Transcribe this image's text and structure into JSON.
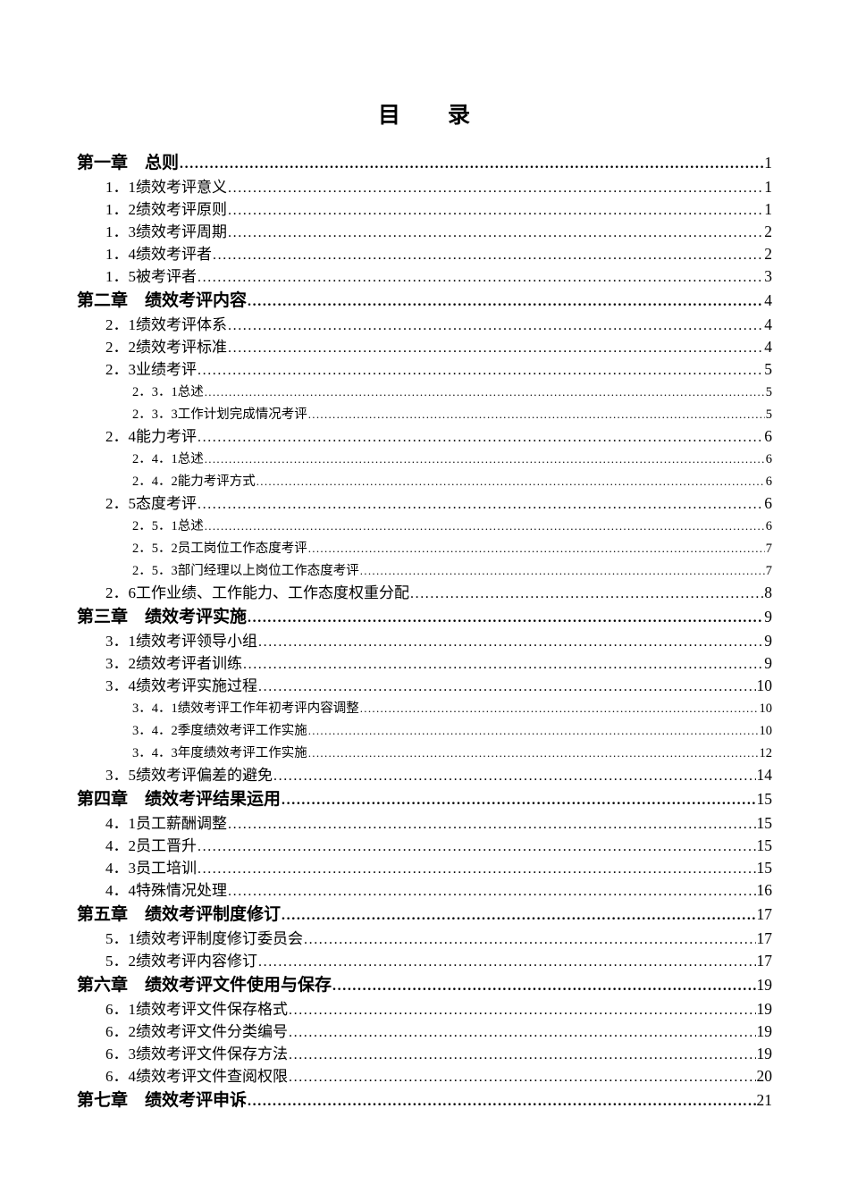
{
  "document": {
    "title": "目　　录",
    "toc": {
      "entries": [
        {
          "level": 1,
          "num": "第一章",
          "title": "总则",
          "page": "1"
        },
        {
          "level": 2,
          "num": "1．1",
          "title": "绩效考评意义",
          "page": "1"
        },
        {
          "level": 2,
          "num": "1．2",
          "title": "绩效考评原则",
          "page": "1"
        },
        {
          "level": 2,
          "num": "1．3",
          "title": "绩效考评周期",
          "page": "2"
        },
        {
          "level": 2,
          "num": "1．4",
          "title": "绩效考评者",
          "page": "2"
        },
        {
          "level": 2,
          "num": "1．5",
          "title": "被考评者",
          "page": "3"
        },
        {
          "level": 1,
          "num": "第二章",
          "title": "绩效考评内容",
          "page": "4"
        },
        {
          "level": 2,
          "num": "2．1",
          "title": "绩效考评体系",
          "page": "4"
        },
        {
          "level": 2,
          "num": "2．2",
          "title": "绩效考评标准",
          "page": "4"
        },
        {
          "level": 2,
          "num": "2．3",
          "title": "业绩考评",
          "page": "5"
        },
        {
          "level": 3,
          "num": "2．3．1",
          "title": "总述",
          "page": "5"
        },
        {
          "level": 3,
          "num": "2．3．3",
          "title": "工作计划完成情况考评",
          "page": "5"
        },
        {
          "level": 2,
          "num": "2．4",
          "title": "能力考评",
          "page": "6"
        },
        {
          "level": 3,
          "num": "2．4．1",
          "title": "总述",
          "page": "6"
        },
        {
          "level": 3,
          "num": "2．4．2",
          "title": "能力考评方式",
          "page": "6"
        },
        {
          "level": 2,
          "num": "2．5",
          "title": "态度考评",
          "page": "6"
        },
        {
          "level": 3,
          "num": "2．5．1",
          "title": "总述",
          "page": "6"
        },
        {
          "level": 3,
          "num": "2．5．2",
          "title": "员工岗位工作态度考评",
          "page": "7"
        },
        {
          "level": 3,
          "num": "2．5．3",
          "title": "部门经理以上岗位工作态度考评",
          "page": "7"
        },
        {
          "level": 2,
          "num": "2．6",
          "title": "工作业绩、工作能力、工作态度权重分配",
          "page": "8"
        },
        {
          "level": 1,
          "num": "第三章",
          "title": "绩效考评实施",
          "page": "9"
        },
        {
          "level": 2,
          "num": "3．1",
          "title": "绩效考评领导小组",
          "page": "9"
        },
        {
          "level": 2,
          "num": "3．2",
          "title": "绩效考评者训练",
          "page": "9"
        },
        {
          "level": 2,
          "num": "3．4",
          "title": "绩效考评实施过程",
          "page": "10"
        },
        {
          "level": 3,
          "num": "3．4．1",
          "title": "绩效考评工作年初考评内容调整",
          "page": "10"
        },
        {
          "level": 3,
          "num": "3．4．2",
          "title": "季度绩效考评工作实施",
          "page": "10"
        },
        {
          "level": 3,
          "num": "3．4．3",
          "title": "年度绩效考评工作实施",
          "page": "12"
        },
        {
          "level": 2,
          "num": "3．5",
          "title": "绩效考评偏差的避免",
          "page": "14"
        },
        {
          "level": 1,
          "num": "第四章",
          "title": "绩效考评结果运用",
          "page": "15"
        },
        {
          "level": 2,
          "num": "4．1",
          "title": "员工薪酬调整",
          "page": "15"
        },
        {
          "level": 2,
          "num": "4．2",
          "title": "员工晋升",
          "page": "15"
        },
        {
          "level": 2,
          "num": "4．3",
          "title": "员工培训",
          "page": "15"
        },
        {
          "level": 2,
          "num": "4．4",
          "title": "特殊情况处理",
          "page": "16"
        },
        {
          "level": 1,
          "num": "第五章",
          "title": "绩效考评制度修订",
          "page": "17"
        },
        {
          "level": 2,
          "num": "5．1",
          "title": "绩效考评制度修订委员会",
          "page": "17"
        },
        {
          "level": 2,
          "num": "5．2",
          "title": "绩效考评内容修订",
          "page": "17"
        },
        {
          "level": 1,
          "num": "第六章",
          "title": "绩效考评文件使用与保存",
          "page": "19"
        },
        {
          "level": 2,
          "num": "6．1",
          "title": "绩效考评文件保存格式",
          "page": "19"
        },
        {
          "level": 2,
          "num": "6．2",
          "title": "绩效考评文件分类编号",
          "page": "19"
        },
        {
          "level": 2,
          "num": "6．3",
          "title": "绩效考评文件保存方法",
          "page": "19"
        },
        {
          "level": 2,
          "num": "6．4",
          "title": "绩效考评文件查阅权限",
          "page": "20"
        },
        {
          "level": 1,
          "num": "第七章",
          "title": "绩效考评申诉",
          "page": "21"
        }
      ]
    }
  }
}
